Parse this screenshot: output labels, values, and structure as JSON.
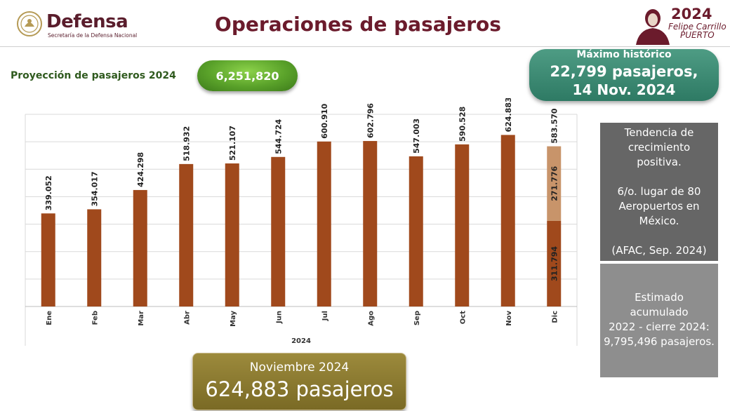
{
  "header": {
    "brand_name": "Defensa",
    "brand_subtitle": "Secretaría de la Defensa Nacional",
    "title": "Operaciones de pasajeros",
    "year_logo": "2024",
    "name_logo_line1": "Felipe Carrillo",
    "name_logo_line2": "PUERTO"
  },
  "projection": {
    "label": "Proyección de pasajeros 2024",
    "value": "6,251,820"
  },
  "max_record": {
    "title": "Máximo histórico",
    "value": "22,799 pasajeros,",
    "date": "14 Nov. 2024"
  },
  "side_panel": {
    "lines1": [
      "Tendencia de",
      "crecimiento",
      "positiva.",
      "",
      "6/o. lugar de 80",
      "Aeropuertos en",
      "México.",
      "",
      "(AFAC, Sep. 2024)"
    ],
    "lines2": [
      "Estimado",
      "acumulado",
      "2022 - cierre 2024:",
      "9,795,496 pasajeros."
    ]
  },
  "november_box": {
    "label": "Noviembre 2024",
    "value": "624,883 pasajeros"
  },
  "colors": {
    "bar": "#a0491c",
    "bar_projection": "#c8946a",
    "title": "#6b1b2c"
  },
  "chart_data": {
    "type": "bar",
    "categories": [
      "Ene",
      "Feb",
      "Mar",
      "Abr",
      "May",
      "Jun",
      "Jul",
      "Ago",
      "Sep",
      "Oct",
      "Nov",
      "Dic"
    ],
    "values": [
      339052,
      354017,
      424298,
      518932,
      521107,
      544724,
      600910,
      602796,
      547003,
      590528,
      624883,
      311794
    ],
    "labels": [
      "339.052",
      "354.017",
      "424.298",
      "518.932",
      "521.107",
      "544.724",
      "600.910",
      "602.796",
      "547.003",
      "590.528",
      "624.883",
      "311.794"
    ],
    "stacked_extra": {
      "category": "Dic",
      "value": 271776,
      "label": "271.776",
      "total_label": "583.570"
    },
    "xlabel": "2024",
    "ylabel": "",
    "ylim": [
      0,
      700000
    ],
    "grid": true
  }
}
